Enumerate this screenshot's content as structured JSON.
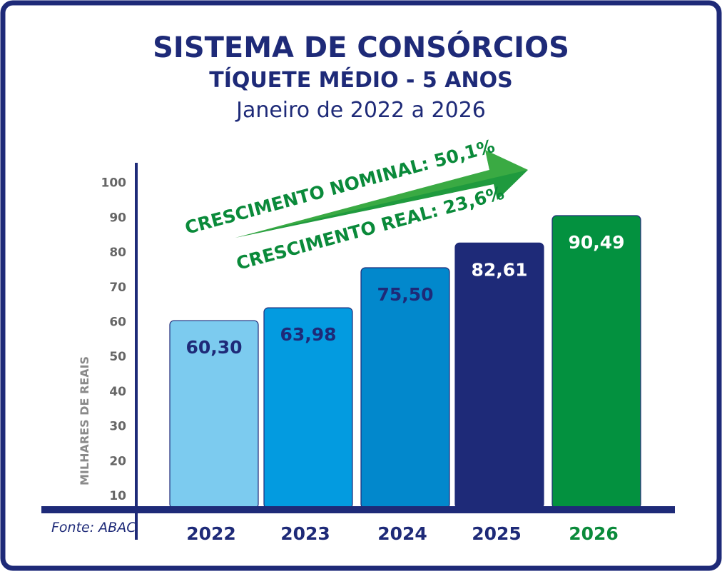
{
  "colors": {
    "navy": "#1e2a78",
    "green": "#0a8a3a",
    "tick_gray": "#666666"
  },
  "chart_data": {
    "type": "bar",
    "title": "SISTEMA DE CONSÓRCIOS",
    "subtitle": "TÍQUETE MÉDIO - 5 ANOS",
    "period": "Janeiro de 2022 a 2026",
    "xlabel": "",
    "ylabel": "MILHARES DE REAIS",
    "yticks": [
      10,
      20,
      30,
      40,
      50,
      60,
      70,
      80,
      90,
      100
    ],
    "ylim": [
      10,
      100
    ],
    "grid": false,
    "categories": [
      "2022",
      "2023",
      "2024",
      "2025",
      "2026"
    ],
    "values": [
      60.3,
      63.98,
      75.5,
      82.61,
      90.49
    ],
    "value_labels": [
      "60,30",
      "63,98",
      "75,50",
      "82,61",
      "90,49"
    ],
    "bar_colors": [
      "#7ccbef",
      "#039be0",
      "#0288cc",
      "#1e2a78",
      "#03913f"
    ],
    "label_colors": [
      "#1e2a78",
      "#1e2a78",
      "#1e2a78",
      "#ffffff",
      "#ffffff"
    ],
    "category_colors": [
      "#1e2a78",
      "#1e2a78",
      "#1e2a78",
      "#1e2a78",
      "#0a8a3a"
    ],
    "annotations": {
      "nominal": "CRESCIMENTO NOMINAL: 50,1%",
      "real": "CRESCIMENTO REAL: 23,6%"
    },
    "source": "Fonte: ABAC"
  }
}
